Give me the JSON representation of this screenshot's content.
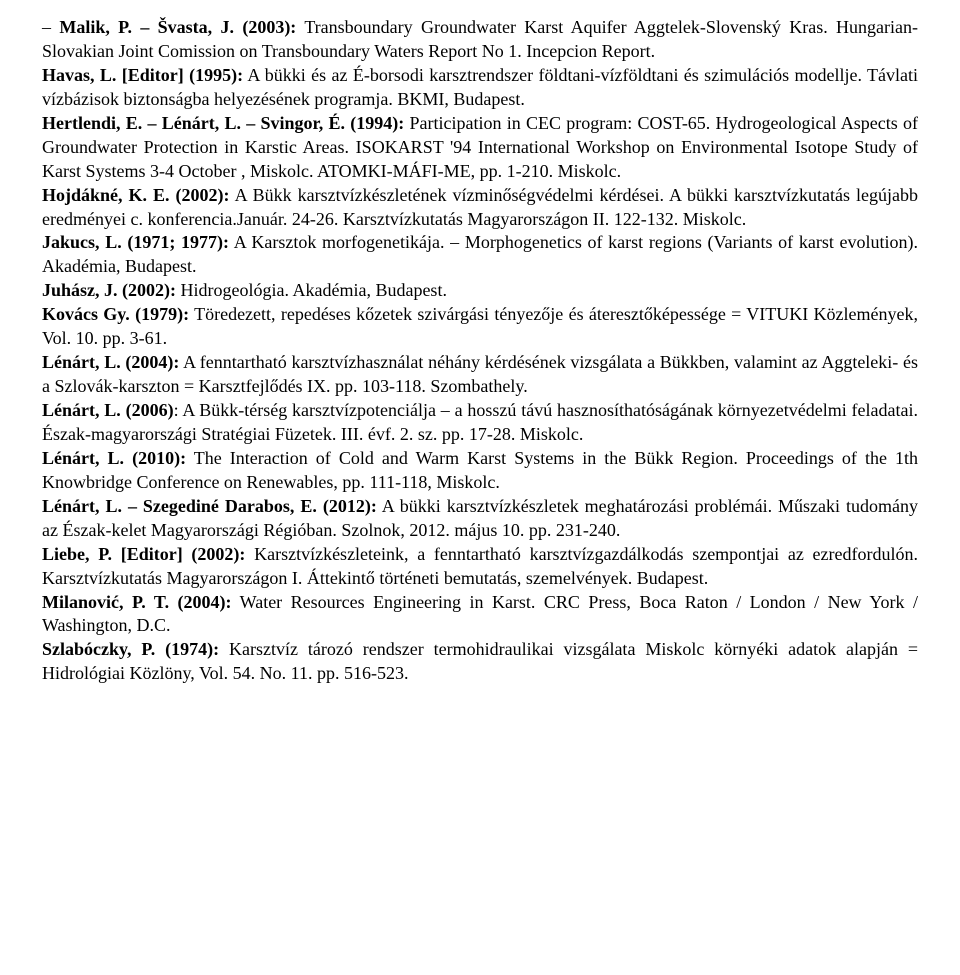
{
  "typography": {
    "font_family": "Times New Roman",
    "font_size_pt": 14,
    "line_height": 1.33,
    "text_color": "#000000",
    "background_color": "#ffffff",
    "text_align": "justify"
  },
  "refs": [
    {
      "html": "– <b>Malik, P. – Švasta, J. (2003):</b> Transboundary Groundwater Karst Aquifer Aggtelek-Slovenský Kras. Hungarian-Slovakian Joint Comission on Transboundary Waters Report No 1. Incepcion Report."
    },
    {
      "html": "<b>Havas, L. [Editor] (1995):</b> A bükki és az É-borsodi karsztrendszer földtani-vízföldtani és szimulációs modellje. Távlati vízbázisok biztonságba helyezésének programja. BKMI, Budapest."
    },
    {
      "html": "<b>Hertlendi, E. – Lénárt, L. – Svingor, É. (1994):</b> Participation in CEC program: COST-65. Hydro­geological Aspects of Groundwater Protection in Karstic Areas. ISOKARST '94 International Workshop on Environmental Isotope Study of Karst Systems 3-4 October , Miskolc. ATOMKI-MÁFI-ME, pp. 1-210. Miskolc."
    },
    {
      "html": "<b>Hojdákné, K. E. (2002):</b> A Bükk karsztvízkészletének vízminőségvédelmi kérdései. A bükki karsztvízkutatás legújabb eredményei c. konferencia.Január. 24-26. Karsztvízkutatás Magyarországon II. 122-132. Miskolc."
    },
    {
      "html": "<b>Jakucs, L. (1971; 1977):</b> A Karsztok morfogenetikája. – Morphogenetics of karst regions (Variants of karst evolution). Akadémia, Budapest."
    },
    {
      "html": "<b>Juhász, J. (2002):</b> Hidrogeológia. Akadémia, Budapest."
    },
    {
      "html": "<b>Kovács Gy. (1979):</b> Töredezett, repedéses kőzetek szivárgási tényezője és áteresztőképessége = VITUKI Közlemények, Vol. 10. pp. 3-61."
    },
    {
      "html": "<b>Lénárt, L. (2004):</b> A fenntartható karsztvízhasználat néhány kérdésének vizsgálata a Bükkben, valamint az Aggteleki- és a Szlovák-karszton = Karsztfejlődés IX. pp. 103-118. Szombathely."
    },
    {
      "html": "<b>Lénárt, L. (2006)</b>: A Bükk-térség karsztvízpotenciálja – a hosszú távú hasznosíthatóságának környezetvédelmi feladatai. Észak-magyarországi Stratégiai Füzetek. III. évf. 2. sz. pp. 17-28. Miskolc."
    },
    {
      "html": "<b>Lénárt, L. (2010):</b> The Interaction of Cold and Warm Karst Systems in the Bükk Region. Proceedings of the 1th Knowbridge Conference on Renewables, pp. 111-118, Miskolc."
    },
    {
      "html": "<b>Lénárt, L. – Szegediné Darabos, E. (2012):</b> A bükki karsztvízkészletek meghatározási problémái. Műszaki tudomány az Észak-kelet Magyarországi Régióban. Szolnok, 2012. május 10. pp. 231-240."
    },
    {
      "html": "<b>Liebe, P. [Editor] (2002):</b> Karsztvízkészleteink, a fenntartható karsztvízgazdálkodás szempontjai az ezredfordulón. Karsztvízkutatás Magyarországon I. Áttekintő történeti bemutatás, szemelvények. Budapest."
    },
    {
      "html": "<b>Milanović, P. T. (2004):</b> Water Resources Engineering in Karst. CRC Press, Boca Raton / London / New York / Washington, D.C.",
      "outdent": true
    },
    {
      "html": "<b>Szlabóczky, P. (1974):</b> Karsztvíz tározó rendszer termohidraulikai vizsgálata Miskolc környéki adatok alapján = Hidrológiai Közlöny, Vol. 54. No. 11. pp. 516-523.",
      "outdent": true
    }
  ]
}
